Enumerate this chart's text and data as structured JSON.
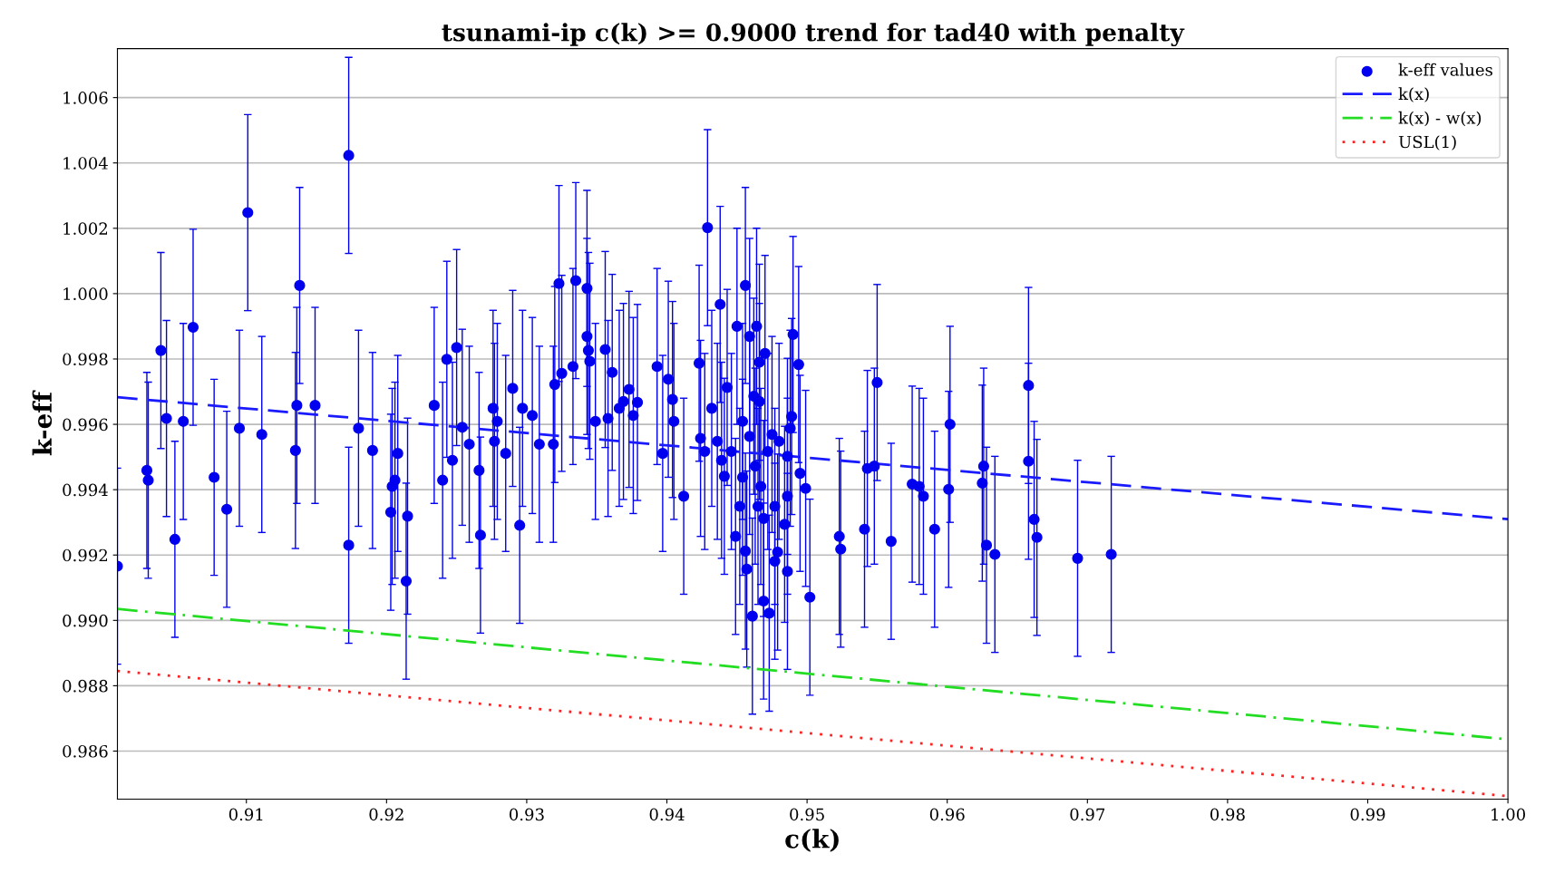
{
  "chart_data": {
    "type": "scatter",
    "title": "tsunami-ip c(k) >= 0.9000 trend for tad40 with penalty",
    "xlabel": "c(k)",
    "ylabel": "k-eff",
    "xlim": [
      0.9008,
      1.0
    ],
    "ylim": [
      0.98453,
      1.0075
    ],
    "xticks": [
      0.91,
      0.92,
      0.93,
      0.94,
      0.95,
      0.96,
      0.97,
      0.98,
      0.99,
      {
        "value": 1.0,
        "label": "1.00"
      }
    ],
    "yticks": [
      0.986,
      0.988,
      {
        "value": 0.99,
        "label": "0.990"
      },
      0.992,
      0.994,
      0.996,
      0.998,
      {
        "value": 1.0,
        "label": "1.000"
      },
      1.002,
      1.004,
      1.006
    ],
    "grid": "y",
    "legend": "top right",
    "series": [
      {
        "name": "k-eff values",
        "type": "scatter",
        "color": "#0000ee",
        "marker": "circle",
        "x": [
          0.9008,
          0.9029,
          0.903,
          0.9039,
          0.9043,
          0.9049,
          0.9055,
          0.9062,
          0.9077,
          0.9086,
          0.9095,
          0.9101,
          0.9111,
          0.9135,
          0.9136,
          0.9138,
          0.9149,
          0.9173,
          0.9173,
          0.918,
          0.919,
          0.9203,
          0.9204,
          0.9206,
          0.9208,
          0.9214,
          0.9215,
          0.9234,
          0.924,
          0.9243,
          0.9247,
          0.925,
          0.9254,
          0.9259,
          0.9266,
          0.9267,
          0.9276,
          0.9277,
          0.9279,
          0.9285,
          0.929,
          0.9295,
          0.9297,
          0.9304,
          0.9309,
          0.9319,
          0.932,
          0.9323,
          0.9325,
          0.9333,
          0.9335,
          0.9343,
          0.9343,
          0.9344,
          0.9345,
          0.9349,
          0.9356,
          0.9358,
          0.9361,
          0.9366,
          0.9369,
          0.9373,
          0.9376,
          0.9379,
          0.9393,
          0.9397,
          0.9401,
          0.9404,
          0.9405,
          0.9412,
          0.9423,
          0.9424,
          0.9427,
          0.9429,
          0.9432,
          0.9436,
          0.9438,
          0.9439,
          0.9441,
          0.9443,
          0.9446,
          0.9449,
          0.945,
          0.9452,
          0.9454,
          0.9454,
          0.9456,
          0.9456,
          0.9457,
          0.9459,
          0.9459,
          0.9461,
          0.9462,
          0.9463,
          0.9464,
          0.9465,
          0.9466,
          0.9466,
          0.9467,
          0.9469,
          0.9469,
          0.947,
          0.9472,
          0.9473,
          0.9475,
          0.9477,
          0.9477,
          0.9479,
          0.948,
          0.9484,
          0.9486,
          0.9486,
          0.9486,
          0.9488,
          0.9489,
          0.949,
          0.9494,
          0.9495,
          0.9499,
          0.9502,
          0.9523,
          0.9524,
          0.9541,
          0.9543,
          0.9548,
          0.955,
          0.956,
          0.9575,
          0.958,
          0.9583,
          0.9591,
          0.9601,
          0.9602,
          0.9625,
          0.9626,
          0.9628,
          0.9634,
          0.9658,
          0.9658,
          0.9662,
          0.9664,
          0.9693,
          0.9717
        ],
        "values": [
          0.99166,
          0.99459,
          0.99429,
          0.99826,
          0.99618,
          0.99248,
          0.99609,
          0.99897,
          0.99438,
          0.9934,
          0.99588,
          1.00248,
          0.99569,
          0.9952,
          0.99658,
          1.00025,
          0.99658,
          1.00423,
          0.9923,
          0.99588,
          0.9952,
          0.99331,
          0.9941,
          0.99429,
          0.99511,
          0.9912,
          0.99319,
          0.99658,
          0.99429,
          0.99799,
          0.9949,
          0.99835,
          0.99591,
          0.99539,
          0.99459,
          0.99261,
          0.99649,
          0.99548,
          0.99609,
          0.99511,
          0.9971,
          0.99291,
          0.99649,
          0.99627,
          0.99539,
          0.99539,
          0.99722,
          1.00031,
          0.99756,
          0.99777,
          1.0004,
          1.00016,
          0.99869,
          0.99826,
          0.99793,
          0.99609,
          0.99829,
          0.99618,
          0.99759,
          0.99649,
          0.9967,
          0.99707,
          0.99627,
          0.99667,
          0.99777,
          0.99511,
          0.99738,
          0.99676,
          0.99609,
          0.9938,
          0.99787,
          0.99557,
          0.99517,
          1.00202,
          0.99649,
          0.99548,
          0.99967,
          0.9949,
          0.99441,
          0.99713,
          0.99517,
          0.99257,
          0.999,
          0.99349,
          0.99609,
          0.99438,
          1.00025,
          0.99212,
          0.99157,
          0.99563,
          0.99869,
          0.99013,
          0.99686,
          0.99472,
          0.999,
          0.99349,
          0.9979,
          0.9967,
          0.9941,
          0.99312,
          0.99059,
          0.99817,
          0.99517,
          0.99022,
          0.99569,
          0.99181,
          0.99349,
          0.99209,
          0.99548,
          0.99294,
          0.9938,
          0.99502,
          0.9915,
          0.99588,
          0.99624,
          0.99875,
          0.99783,
          0.9945,
          0.99404,
          0.99071,
          0.99257,
          0.99218,
          0.99279,
          0.99465,
          0.99472,
          0.99728,
          0.99242,
          0.99417,
          0.9941,
          0.9938,
          0.99279,
          0.99401,
          0.996,
          0.9942,
          0.99472,
          0.9923,
          0.99202,
          0.99719,
          0.99487,
          0.99309,
          0.99254,
          0.9919,
          0.99202
        ],
        "errors": [
          0.003,
          0.003,
          0.003,
          0.003,
          0.003,
          0.003,
          0.003,
          0.003,
          0.003,
          0.003,
          0.003,
          0.003,
          0.003,
          0.003,
          0.003,
          0.003,
          0.003,
          0.003,
          0.003,
          0.003,
          0.003,
          0.003,
          0.003,
          0.003,
          0.003,
          0.003,
          0.003,
          0.003,
          0.003,
          0.003,
          0.003,
          0.003,
          0.003,
          0.003,
          0.003,
          0.003,
          0.003,
          0.003,
          0.003,
          0.003,
          0.003,
          0.003,
          0.003,
          0.003,
          0.003,
          0.003,
          0.003,
          0.003,
          0.003,
          0.003,
          0.003,
          0.003,
          0.003,
          0.003,
          0.003,
          0.003,
          0.003,
          0.003,
          0.003,
          0.003,
          0.003,
          0.003,
          0.003,
          0.003,
          0.003,
          0.003,
          0.003,
          0.003,
          0.003,
          0.003,
          0.003,
          0.003,
          0.003,
          0.003,
          0.003,
          0.003,
          0.003,
          0.003,
          0.003,
          0.003,
          0.003,
          0.003,
          0.003,
          0.003,
          0.003,
          0.003,
          0.003,
          0.003,
          0.003,
          0.003,
          0.003,
          0.003,
          0.003,
          0.003,
          0.003,
          0.003,
          0.003,
          0.003,
          0.003,
          0.003,
          0.003,
          0.003,
          0.003,
          0.003,
          0.003,
          0.003,
          0.003,
          0.003,
          0.003,
          0.003,
          0.003,
          0.003,
          0.003,
          0.003,
          0.003,
          0.003,
          0.003,
          0.003,
          0.003,
          0.003,
          0.003,
          0.003,
          0.003,
          0.003,
          0.003,
          0.003,
          0.003,
          0.003,
          0.003,
          0.003,
          0.003,
          0.003,
          0.003,
          0.003,
          0.003,
          0.003,
          0.003,
          0.003,
          0.003,
          0.003,
          0.003,
          0.003,
          0.003
        ]
      },
      {
        "name": "k(x)",
        "type": "line",
        "color": "#1a1aff",
        "line_style": "dashed",
        "x": [
          0.9008,
          1.0
        ],
        "values": [
          0.99683,
          0.9931
        ]
      },
      {
        "name": "k(x) - w(x)",
        "type": "line",
        "color": "#22dd22",
        "line_style": "dashdot",
        "x": [
          0.9008,
          1.0
        ],
        "values": [
          0.99035,
          0.98636
        ]
      },
      {
        "name": "USL(1)",
        "type": "line",
        "color": "#ff2222",
        "line_style": "dotted",
        "x": [
          0.9008,
          1.0
        ],
        "values": [
          0.98845,
          0.98462
        ]
      }
    ]
  }
}
